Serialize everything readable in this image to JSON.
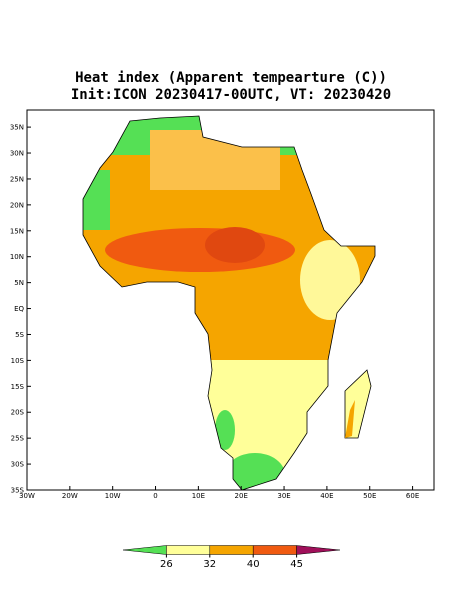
{
  "title": [
    "Heat index (Apparent tempearture (C))",
    "Init:ICON 20230417-00UTC, VT: 20230420"
  ],
  "map": {
    "lonlim": [
      -30,
      65
    ],
    "latlim": [
      -35,
      38.3
    ],
    "xticks": [
      {
        "value": -30,
        "label": "30W"
      },
      {
        "value": -20,
        "label": "20W"
      },
      {
        "value": -10,
        "label": "10W"
      },
      0,
      {
        "value": 10,
        "label": "10E"
      },
      {
        "value": 20,
        "label": "20E"
      },
      {
        "value": 30,
        "label": "30E"
      },
      {
        "value": 40,
        "label": "40E"
      },
      {
        "value": 50,
        "label": "50E"
      },
      {
        "value": 60,
        "label": "60E"
      }
    ],
    "yticks": [
      {
        "value": 35,
        "label": "35N"
      },
      {
        "value": 30,
        "label": "30N"
      },
      {
        "value": 25,
        "label": "25N"
      },
      {
        "value": 20,
        "label": "20N"
      },
      {
        "value": 15,
        "label": "15N"
      },
      {
        "value": 10,
        "label": "10N"
      },
      {
        "value": 5,
        "label": "5N"
      },
      {
        "value": 0,
        "label": "EQ"
      },
      {
        "value": -5,
        "label": "5S"
      },
      {
        "value": -10,
        "label": "10S"
      },
      {
        "value": -15,
        "label": "15S"
      },
      {
        "value": -20,
        "label": "20S"
      },
      {
        "value": -25,
        "label": "25S"
      },
      {
        "value": -30,
        "label": "30S"
      },
      {
        "value": -35,
        "label": "35S"
      }
    ]
  },
  "colorbar": {
    "levels": [
      26,
      32,
      40,
      45
    ],
    "colors": [
      "#55e055",
      "#ffff99",
      "#f5a500",
      "#f05a10",
      "#a0105a"
    ]
  }
}
